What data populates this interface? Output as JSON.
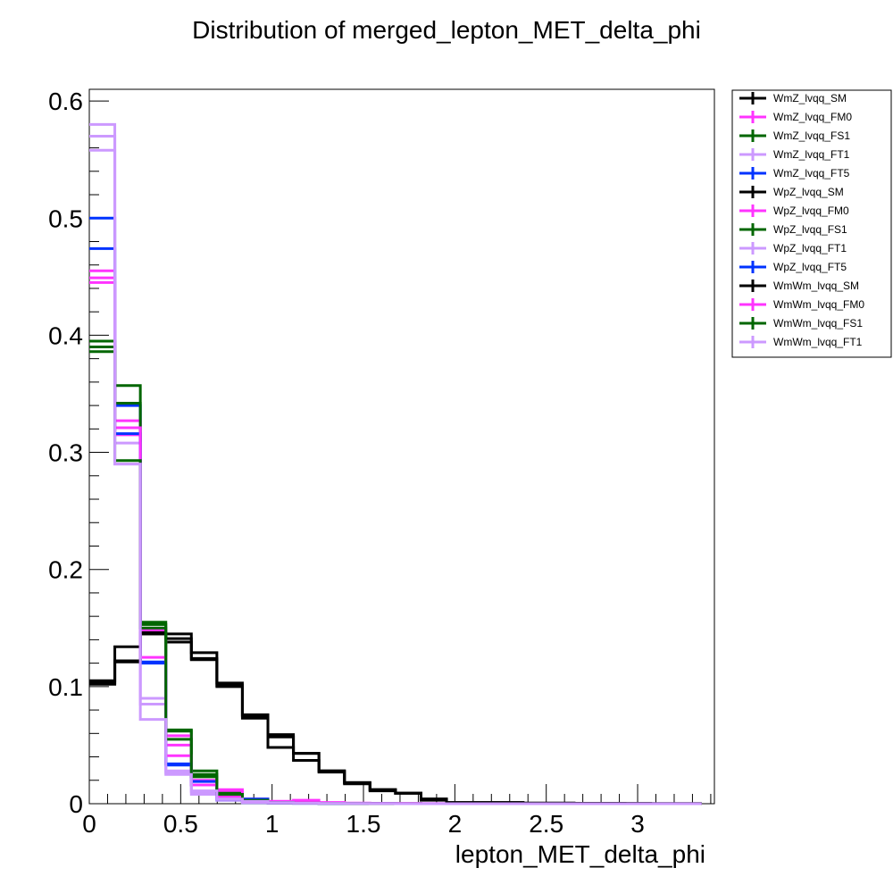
{
  "chart_data": {
    "type": "line",
    "title": "Distribution of merged_lepton_MET_delta_phi",
    "xlabel": "lepton_MET_delta_phi",
    "ylabel": "",
    "xlim": [
      0,
      3.42
    ],
    "ylim": [
      0,
      0.61
    ],
    "x_ticks": [
      0,
      0.5,
      1,
      1.5,
      2,
      2.5,
      3
    ],
    "x_tick_labels": [
      "0",
      "0.5",
      "1",
      "1.5",
      "2",
      "2.5",
      "3"
    ],
    "y_ticks": [
      0,
      0.1,
      0.2,
      0.3,
      0.4,
      0.5,
      0.6
    ],
    "y_tick_labels": [
      "0",
      "0.1",
      "0.2",
      "0.3",
      "0.4",
      "0.5",
      "0.6"
    ],
    "histogram_style": "step",
    "bin_edges": [
      0,
      0.1396,
      0.2792,
      0.4188,
      0.5584,
      0.698,
      0.8376,
      0.9772,
      1.1168,
      1.2564,
      1.396,
      1.5356,
      1.6752,
      1.8148,
      1.9544,
      2.094,
      2.2336,
      2.3732,
      2.5128,
      2.6524,
      2.792,
      2.9316,
      3.0712,
      3.2108,
      3.3504
    ],
    "grid": false,
    "legend_position": "top-right, outside plot",
    "series": [
      {
        "name": "WmZ_lvqq_SM",
        "color": "#000000",
        "values": [
          0.102,
          0.122,
          0.145,
          0.138,
          0.123,
          0.1,
          0.073,
          0.048,
          0.037,
          0.027,
          0.017,
          0.012,
          0.009,
          0.003,
          0.001,
          0.001,
          0.001,
          0.0005,
          0.0005,
          0.0003,
          0.0003,
          0.0002,
          0.0001,
          0.0001
        ]
      },
      {
        "name": "WmZ_lvqq_FM0",
        "color": "#ff33ff",
        "values": [
          0.445,
          0.315,
          0.148,
          0.05,
          0.02,
          0.01,
          0.004,
          0.002,
          0.001,
          0.001,
          0.0005,
          0.0003,
          0.0002,
          0.0001,
          0.0001,
          0,
          0,
          0,
          0,
          0,
          0,
          0,
          0,
          0
        ]
      },
      {
        "name": "WmZ_lvqq_FS1",
        "color": "#006600",
        "values": [
          0.39,
          0.357,
          0.155,
          0.063,
          0.028,
          0.009,
          0.003,
          0.001,
          0.0005,
          0.0003,
          0.0002,
          0.0001,
          0.0001,
          0,
          0,
          0,
          0,
          0,
          0,
          0,
          0,
          0,
          0,
          0
        ]
      },
      {
        "name": "WmZ_lvqq_FT1",
        "color": "#cc99ff",
        "values": [
          0.58,
          0.29,
          0.085,
          0.028,
          0.01,
          0.004,
          0.002,
          0.001,
          0.0005,
          0.0003,
          0.0002,
          0.0001,
          0.0001,
          0,
          0,
          0,
          0,
          0,
          0,
          0,
          0,
          0,
          0,
          0
        ]
      },
      {
        "name": "WmZ_lvqq_FT5",
        "color": "#0033ff",
        "values": [
          0.474,
          0.34,
          0.121,
          0.033,
          0.019,
          0.003,
          0.001,
          0.0005,
          0.0003,
          0.0002,
          0.0001,
          0.0001,
          0,
          0,
          0,
          0,
          0,
          0,
          0,
          0,
          0,
          0,
          0,
          0
        ]
      },
      {
        "name": "WpZ_lvqq_SM",
        "color": "#000000",
        "values": [
          0.105,
          0.134,
          0.145,
          0.145,
          0.129,
          0.103,
          0.076,
          0.059,
          0.043,
          0.028,
          0.018,
          0.011,
          0.009,
          0.004,
          0.001,
          0.001,
          0.001,
          0.0005,
          0.0005,
          0.0003,
          0.0003,
          0.0002,
          0.0001,
          0.0001
        ]
      },
      {
        "name": "WpZ_lvqq_FM0",
        "color": "#ff33ff",
        "values": [
          0.455,
          0.327,
          0.149,
          0.058,
          0.024,
          0.012,
          0.003,
          0.002,
          0.003,
          0.001,
          0.0005,
          0.0003,
          0.0002,
          0.0001,
          0.0001,
          0,
          0,
          0,
          0,
          0,
          0,
          0,
          0,
          0
        ]
      },
      {
        "name": "WpZ_lvqq_FS1",
        "color": "#006600",
        "values": [
          0.395,
          0.342,
          0.153,
          0.062,
          0.025,
          0.008,
          0.002,
          0.001,
          0.0005,
          0.0003,
          0.0002,
          0.0001,
          0.0001,
          0,
          0,
          0,
          0,
          0,
          0,
          0,
          0,
          0,
          0,
          0
        ]
      },
      {
        "name": "WpZ_lvqq_FT1",
        "color": "#cc99ff",
        "values": [
          0.57,
          0.308,
          0.09,
          0.026,
          0.008,
          0.003,
          0.001,
          0.0005,
          0.0003,
          0.0002,
          0.0001,
          0.0001,
          0,
          0,
          0,
          0,
          0,
          0,
          0,
          0,
          0,
          0,
          0,
          0
        ]
      },
      {
        "name": "WpZ_lvqq_FT5",
        "color": "#0033ff",
        "values": [
          0.5,
          0.316,
          0.12,
          0.034,
          0.016,
          0.004,
          0.004,
          0.001,
          0.0005,
          0.0003,
          0.0002,
          0.0001,
          0,
          0,
          0,
          0,
          0,
          0,
          0,
          0,
          0,
          0,
          0,
          0
        ]
      },
      {
        "name": "WmWm_lvqq_SM",
        "color": "#000000",
        "values": [
          0.103,
          0.121,
          0.146,
          0.141,
          0.124,
          0.101,
          0.075,
          0.057,
          0.043,
          0.028,
          0.018,
          0.012,
          0.009,
          0.004,
          0.001,
          0.001,
          0.001,
          0.0005,
          0.0005,
          0.0003,
          0.0003,
          0.0002,
          0.0001,
          0.0001
        ]
      },
      {
        "name": "WmWm_lvqq_FM0",
        "color": "#ff33ff",
        "values": [
          0.449,
          0.321,
          0.125,
          0.041,
          0.016,
          0.006,
          0.002,
          0.001,
          0.001,
          0.0005,
          0.0003,
          0.0002,
          0.0001,
          0,
          0,
          0,
          0,
          0,
          0,
          0,
          0,
          0,
          0,
          0
        ]
      },
      {
        "name": "WmWm_lvqq_FS1",
        "color": "#006600",
        "values": [
          0.386,
          0.293,
          0.15,
          0.055,
          0.023,
          0.008,
          0.003,
          0.001,
          0.0005,
          0.0003,
          0.0002,
          0.0001,
          0,
          0,
          0,
          0,
          0,
          0,
          0,
          0,
          0,
          0,
          0,
          0
        ]
      },
      {
        "name": "WmWm_lvqq_FT1",
        "color": "#cc99ff",
        "values": [
          0.558,
          0.29,
          0.072,
          0.025,
          0.011,
          0.004,
          0.002,
          0.001,
          0.0005,
          0.0003,
          0.0002,
          0.0001,
          0,
          0,
          0,
          0,
          0,
          0,
          0,
          0,
          0,
          0,
          0,
          0
        ]
      }
    ]
  }
}
